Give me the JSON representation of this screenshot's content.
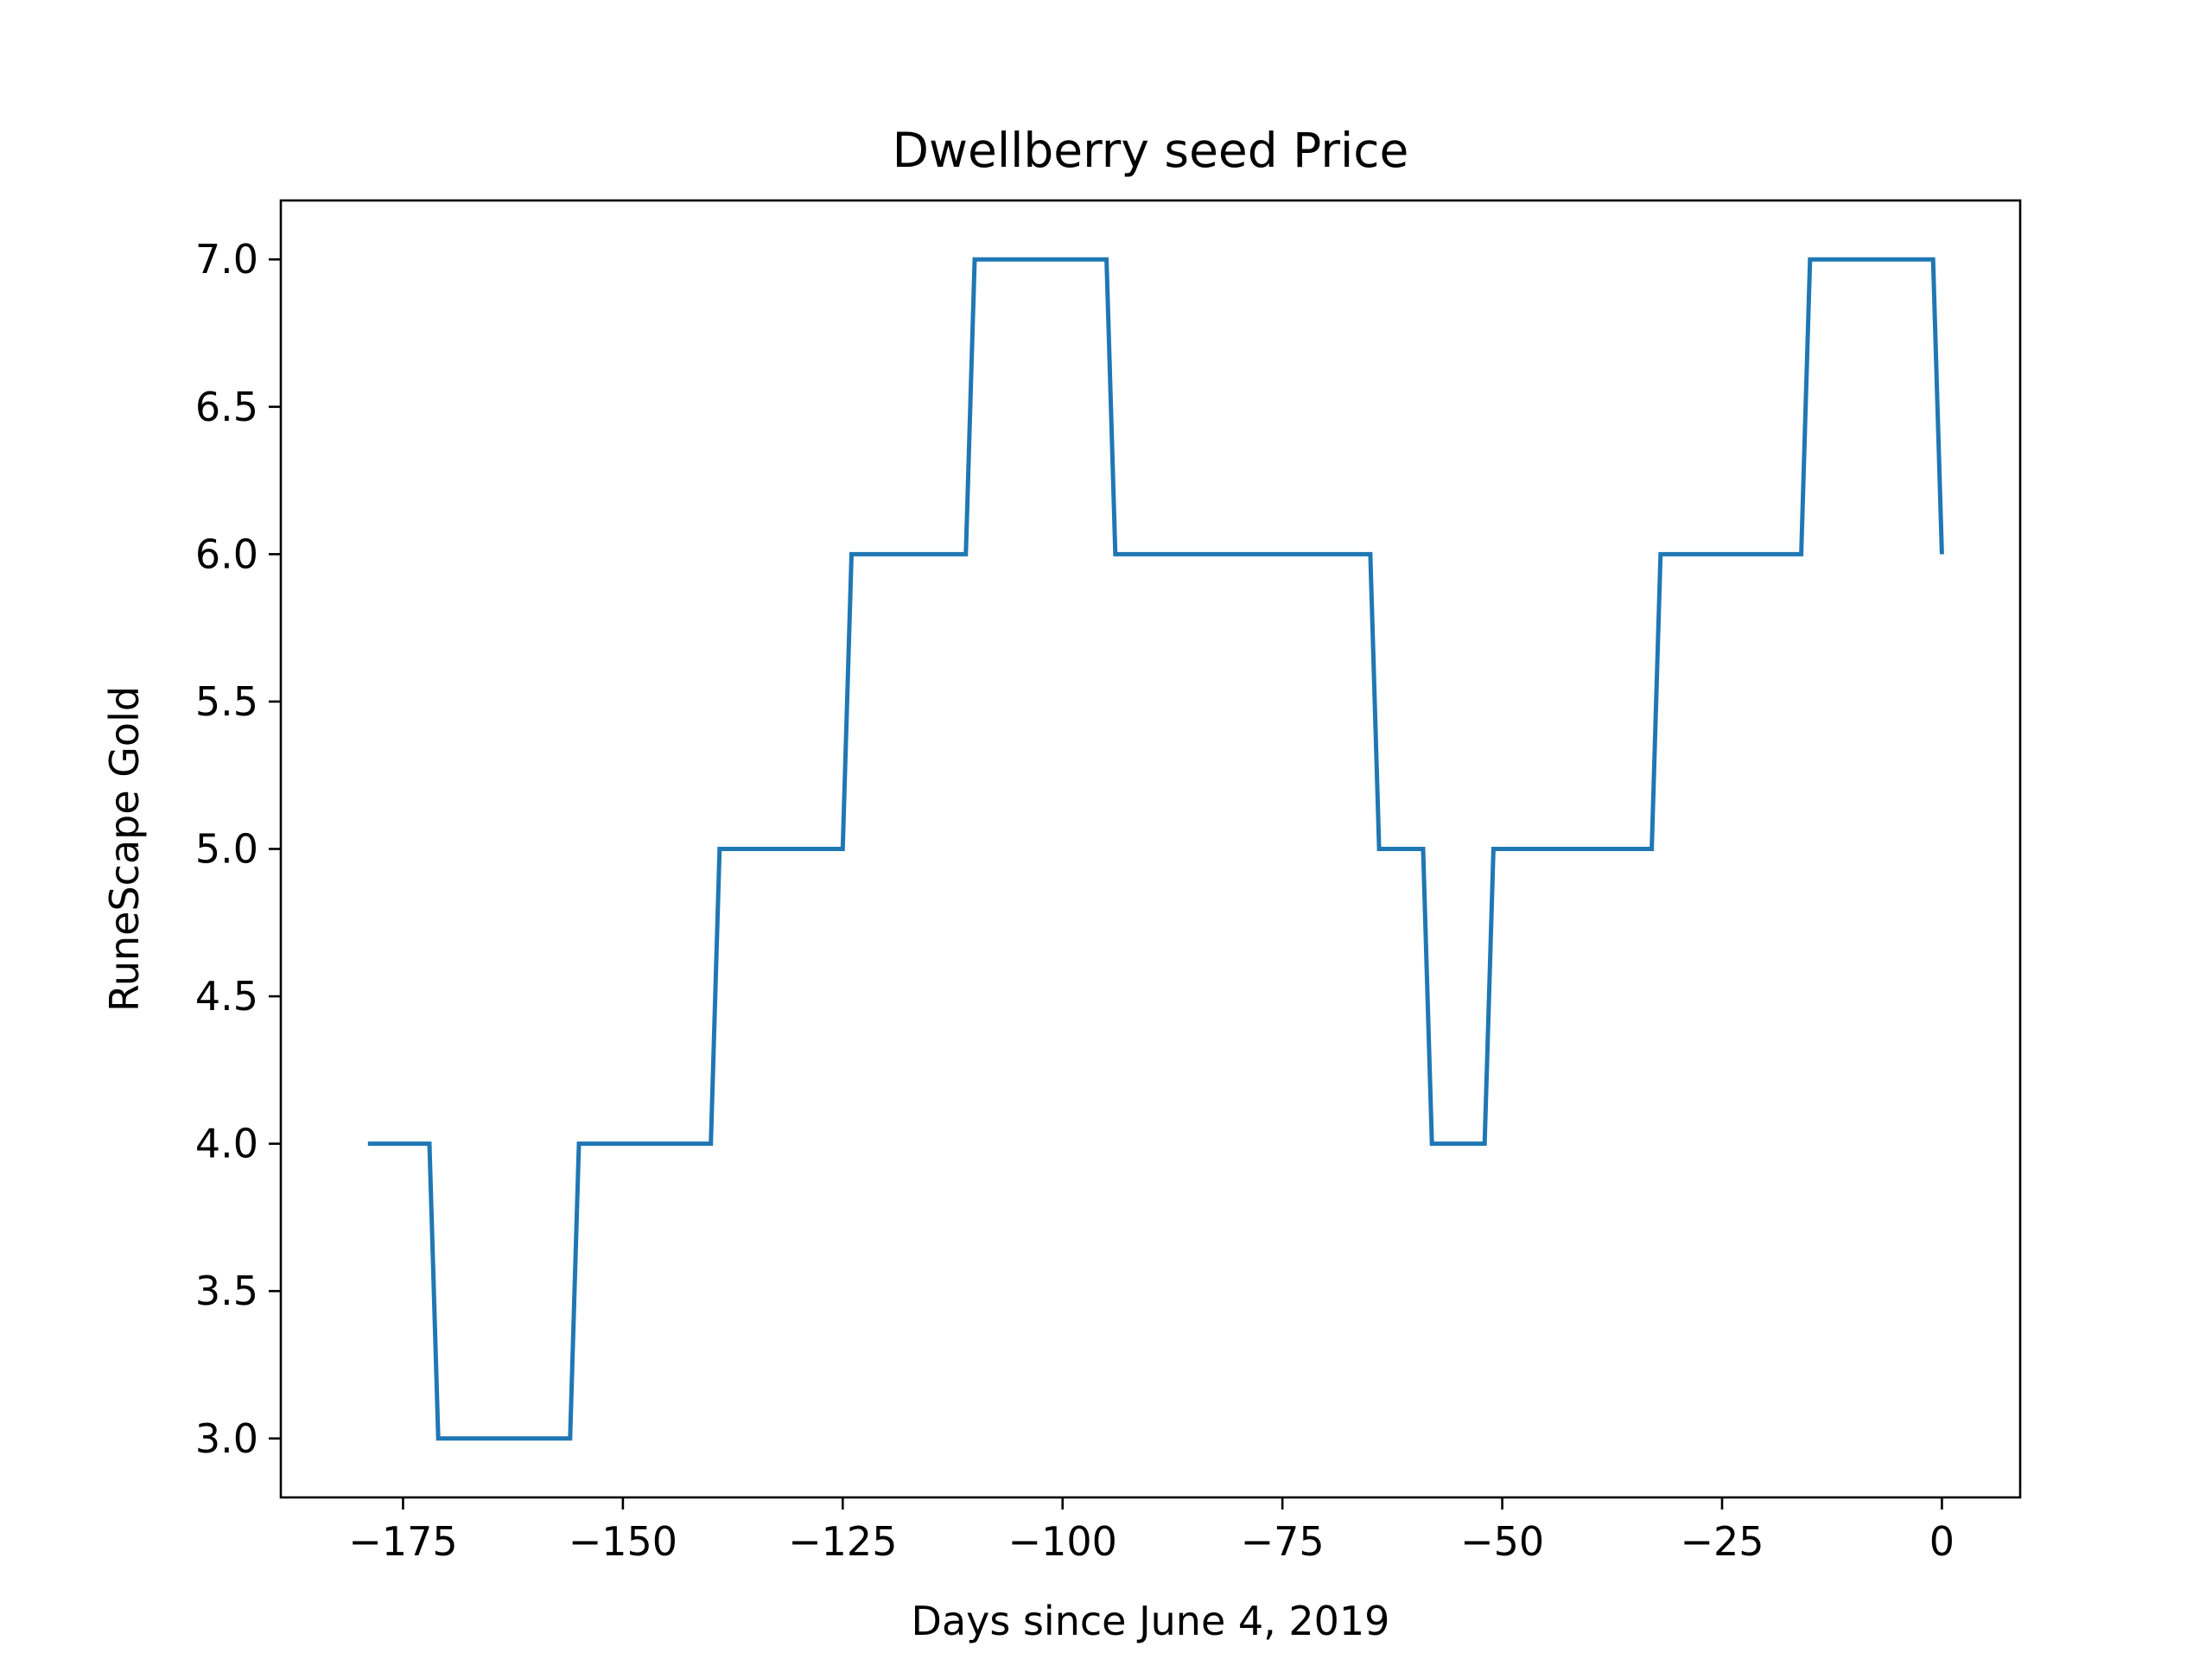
{
  "chart_data": {
    "type": "line",
    "title": "Dwellberry seed Price",
    "xlabel": "Days since June 4, 2019",
    "ylabel": "RuneScape Gold",
    "xlim": [
      -188.9,
      8.9
    ],
    "ylim": [
      2.8,
      7.2
    ],
    "xticks": [
      -175,
      -150,
      -125,
      -100,
      -75,
      -50,
      -25,
      0
    ],
    "xtick_labels": [
      "−175",
      "−150",
      "−125",
      "−100",
      "−75",
      "−50",
      "−25",
      "0"
    ],
    "yticks": [
      3.0,
      3.5,
      4.0,
      4.5,
      5.0,
      5.5,
      6.0,
      6.5,
      7.0
    ],
    "ytick_labels": [
      "3.0",
      "3.5",
      "4.0",
      "4.5",
      "5.0",
      "5.5",
      "6.0",
      "6.5",
      "7.0"
    ],
    "grid": false,
    "series": [
      {
        "color": "#1f77b4",
        "x": [
          -179,
          -172,
          -171,
          -156,
          -155,
          -140,
          -139,
          -125,
          -124,
          -111,
          -110,
          -95,
          -94,
          -65,
          -64,
          -59,
          -58,
          -52,
          -51,
          -33,
          -32,
          -16,
          -15,
          -1,
          0
        ],
        "y": [
          4,
          4,
          3,
          3,
          4,
          4,
          5,
          5,
          6,
          6,
          7,
          7,
          6,
          6,
          5,
          5,
          4,
          4,
          5,
          5,
          6,
          6,
          7,
          7,
          6
        ]
      }
    ]
  }
}
